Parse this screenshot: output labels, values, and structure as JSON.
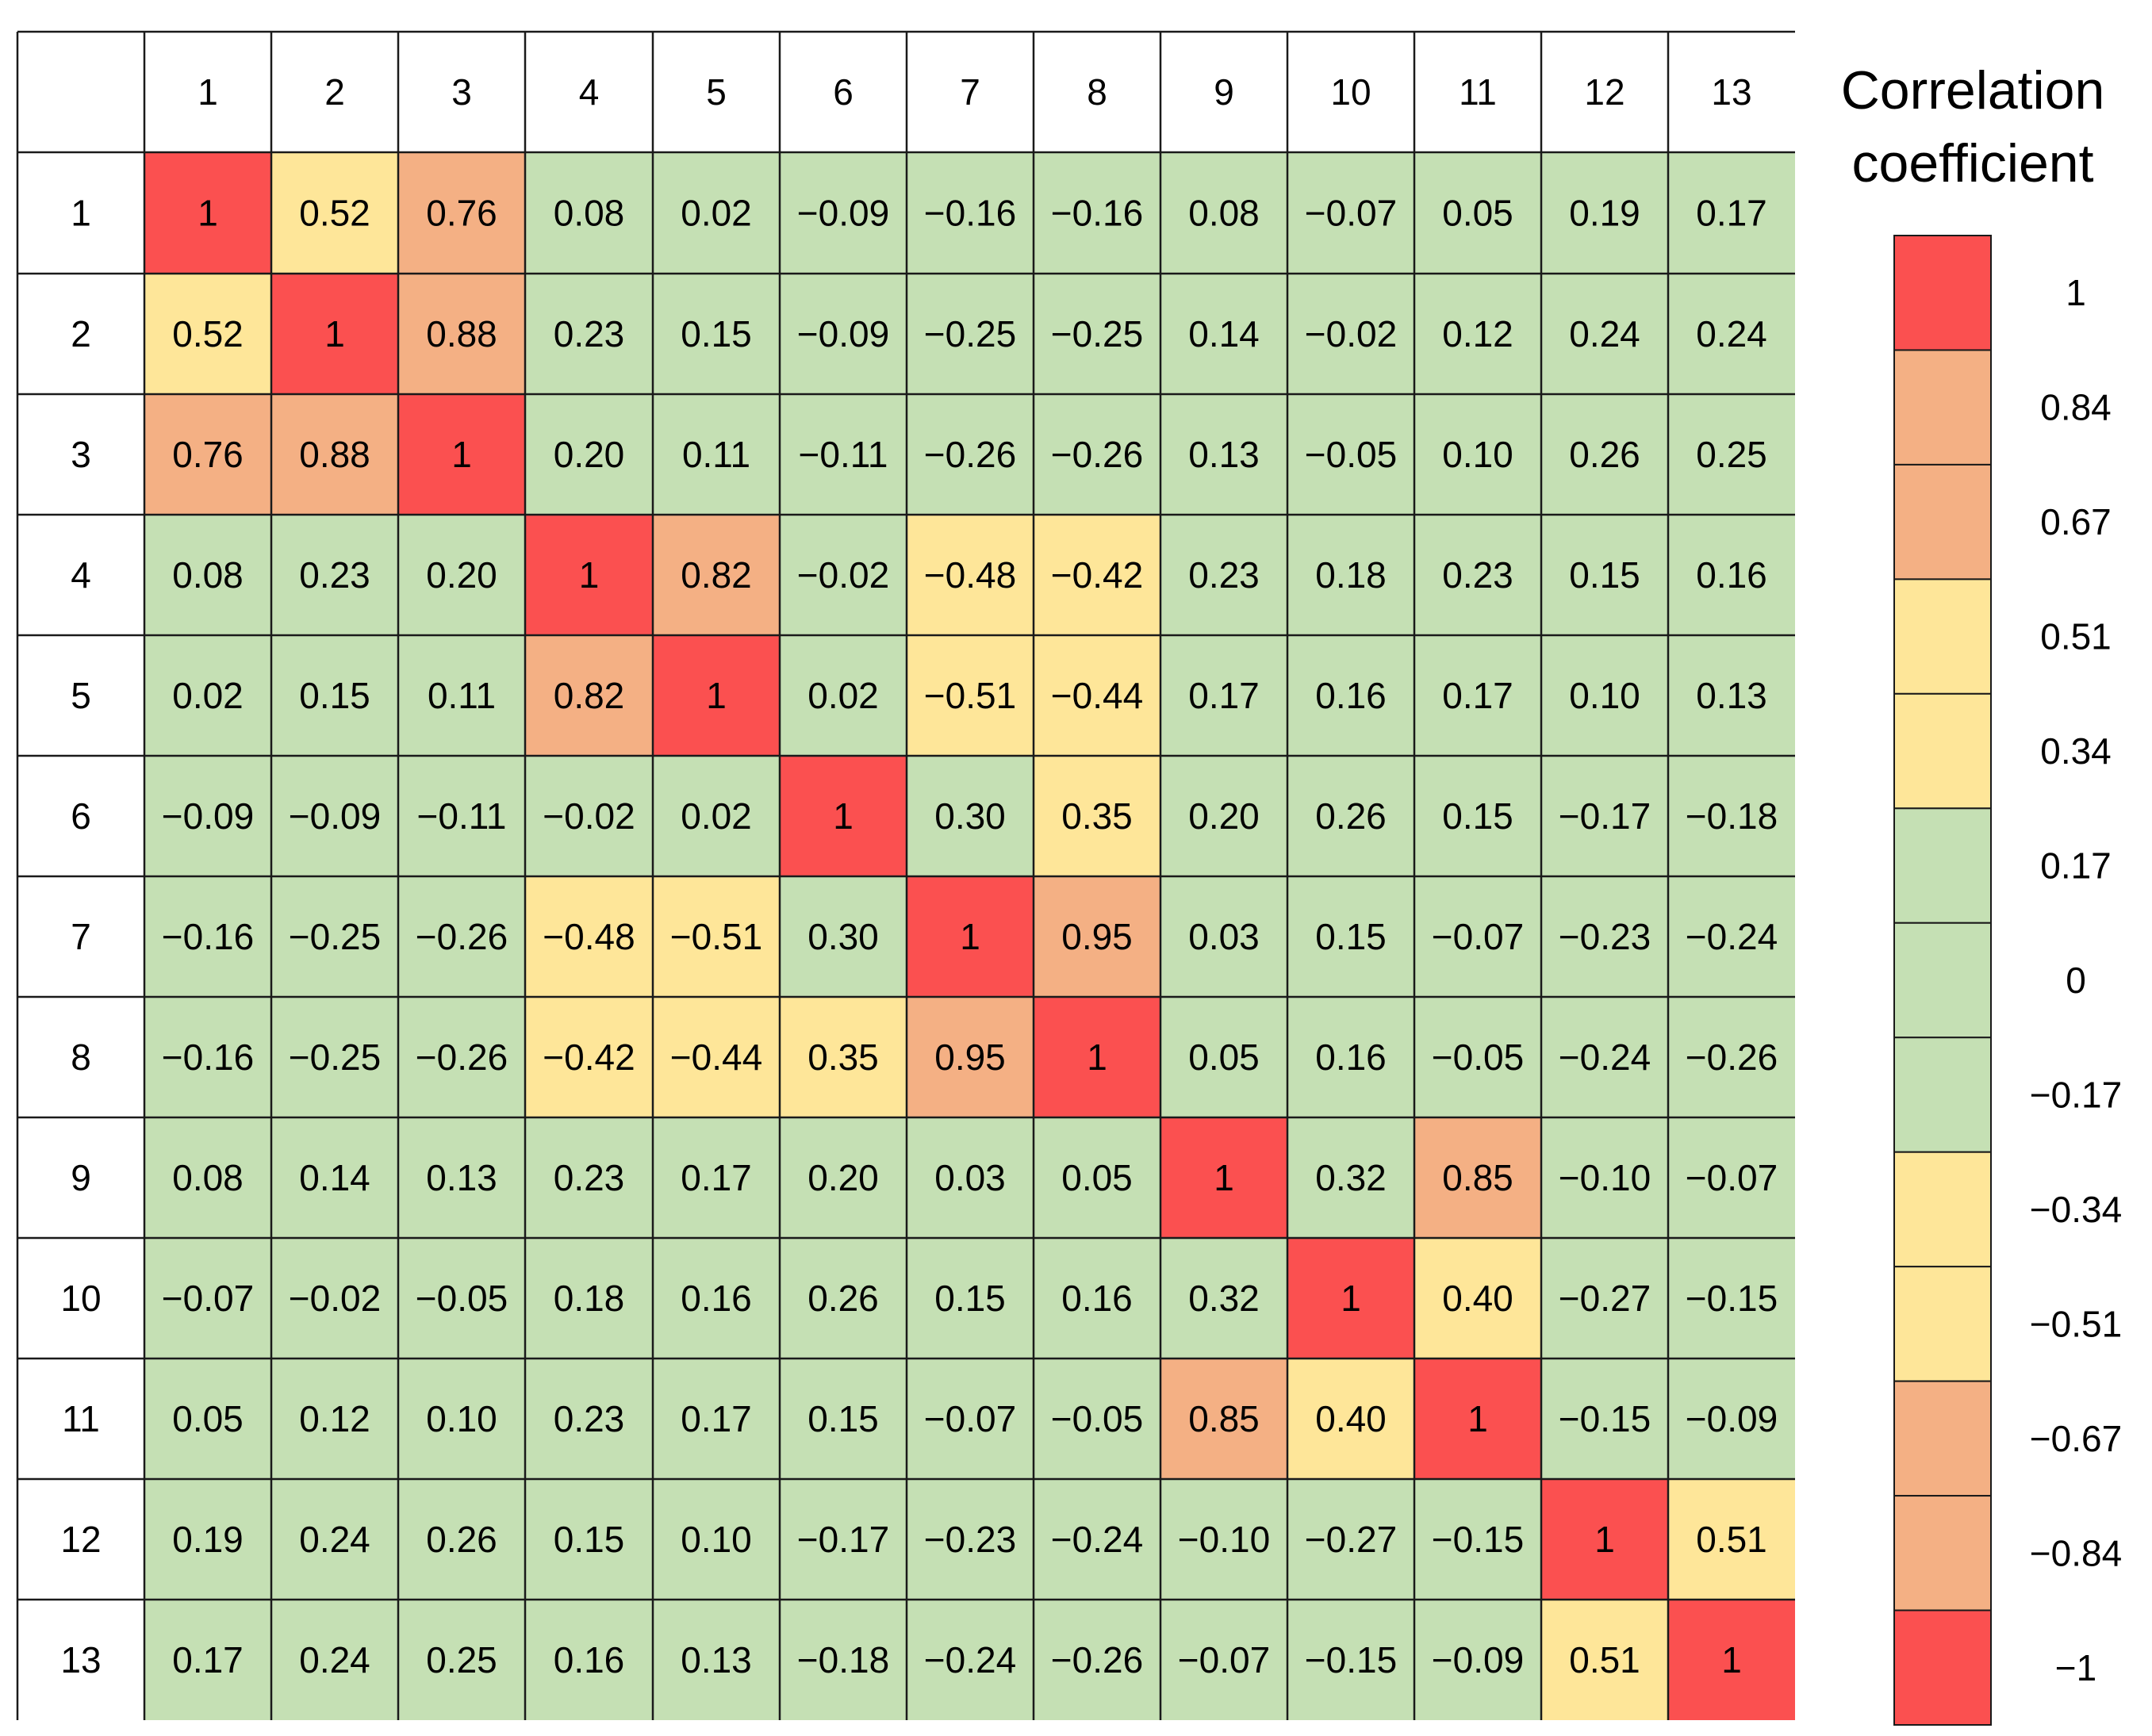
{
  "chart_data": {
    "type": "heatmap",
    "title": "",
    "xlabel": "",
    "ylabel": "",
    "column_labels": [
      "1",
      "2",
      "3",
      "4",
      "5",
      "6",
      "7",
      "8",
      "9",
      "10",
      "11",
      "12",
      "13"
    ],
    "row_labels": [
      "1",
      "2",
      "3",
      "4",
      "5",
      "6",
      "7",
      "8",
      "9",
      "10",
      "11",
      "12",
      "13"
    ],
    "cells": [
      [
        "1",
        "0.52",
        "0.76",
        "0.08",
        "0.02",
        "−0.09",
        "−0.16",
        "−0.16",
        "0.08",
        "−0.07",
        "0.05",
        "0.19",
        "0.17"
      ],
      [
        "0.52",
        "1",
        "0.88",
        "0.23",
        "0.15",
        "−0.09",
        "−0.25",
        "−0.25",
        "0.14",
        "−0.02",
        "0.12",
        "0.24",
        "0.24"
      ],
      [
        "0.76",
        "0.88",
        "1",
        "0.20",
        "0.11",
        "−0.11",
        "−0.26",
        "−0.26",
        "0.13",
        "−0.05",
        "0.10",
        "0.26",
        "0.25"
      ],
      [
        "0.08",
        "0.23",
        "0.20",
        "1",
        "0.82",
        "−0.02",
        "−0.48",
        "−0.42",
        "0.23",
        "0.18",
        "0.23",
        "0.15",
        "0.16"
      ],
      [
        "0.02",
        "0.15",
        "0.11",
        "0.82",
        "1",
        "0.02",
        "−0.51",
        "−0.44",
        "0.17",
        "0.16",
        "0.17",
        "0.10",
        "0.13"
      ],
      [
        "−0.09",
        "−0.09",
        "−0.11",
        "−0.02",
        "0.02",
        "1",
        "0.30",
        "0.35",
        "0.20",
        "0.26",
        "0.15",
        "−0.17",
        "−0.18"
      ],
      [
        "−0.16",
        "−0.25",
        "−0.26",
        "−0.48",
        "−0.51",
        "0.30",
        "1",
        "0.95",
        "0.03",
        "0.15",
        "−0.07",
        "−0.23",
        "−0.24"
      ],
      [
        "−0.16",
        "−0.25",
        "−0.26",
        "−0.42",
        "−0.44",
        "0.35",
        "0.95",
        "1",
        "0.05",
        "0.16",
        "−0.05",
        "−0.24",
        "−0.26"
      ],
      [
        "0.08",
        "0.14",
        "0.13",
        "0.23",
        "0.17",
        "0.20",
        "0.03",
        "0.05",
        "1",
        "0.32",
        "0.85",
        "−0.10",
        "−0.07"
      ],
      [
        "−0.07",
        "−0.02",
        "−0.05",
        "0.18",
        "0.16",
        "0.26",
        "0.15",
        "0.16",
        "0.32",
        "1",
        "0.40",
        "−0.27",
        "−0.15"
      ],
      [
        "0.05",
        "0.12",
        "0.10",
        "0.23",
        "0.17",
        "0.15",
        "−0.07",
        "−0.05",
        "0.85",
        "0.40",
        "1",
        "−0.15",
        "−0.09"
      ],
      [
        "0.19",
        "0.24",
        "0.26",
        "0.15",
        "0.10",
        "−0.17",
        "−0.23",
        "−0.24",
        "−0.10",
        "−0.27",
        "−0.15",
        "1",
        "0.51"
      ],
      [
        "0.17",
        "0.24",
        "0.25",
        "0.16",
        "0.13",
        "−0.18",
        "−0.24",
        "−0.26",
        "−0.07",
        "−0.15",
        "−0.09",
        "0.51",
        "1"
      ]
    ],
    "legend": {
      "title": "Correlation coefficient",
      "title_lines": [
        "Correlation",
        "coefficient"
      ],
      "tick_labels": [
        "1",
        "0.84",
        "0.67",
        "0.51",
        "0.34",
        "0.17",
        "0",
        "−0.17",
        "−0.34",
        "−0.51",
        "−0.67",
        "−0.84",
        "−1"
      ],
      "bands_top_to_bottom": [
        "#fb5050",
        "#f4b084",
        "#f4b084",
        "#fee699",
        "#fee699",
        "#c5e0b4",
        "#c5e0b4",
        "#c5e0b4",
        "#fee699",
        "#fee699",
        "#f4b084",
        "#f4b084",
        "#fb5050"
      ]
    },
    "colors": {
      "strong": "#fb5050",
      "high": "#f4b084",
      "moderate": "#fee699",
      "weak": "#c5e0b4",
      "header_bg": "#ffffff",
      "grid": "#1a1a1a"
    }
  }
}
